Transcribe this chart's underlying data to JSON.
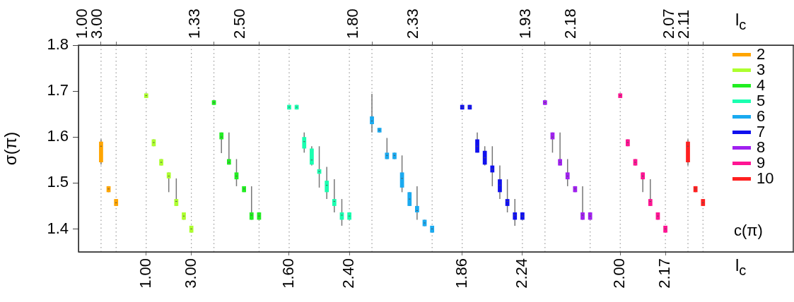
{
  "chart_data": {
    "type": "box",
    "ylabel": "σ(π)",
    "xlabel": "l$_{c}$",
    "x2label": "l$_{c}$",
    "legend_title": "c(π)",
    "legend": "right",
    "grid": "x",
    "ylim": [
      1.35,
      1.8
    ],
    "yticks": [
      1.4,
      1.5,
      1.6,
      1.7,
      1.8
    ],
    "annotations": [
      "1.00",
      "3.00",
      "1.33",
      "2.50",
      "1.80",
      "2.33",
      "1.93",
      "2.18",
      "2.07",
      "2.11"
    ],
    "categories": [
      null,
      null,
      null,
      null,
      null,
      null,
      "1.00",
      null,
      null,
      null,
      null,
      null,
      "3.00",
      null,
      null,
      null,
      null,
      null,
      null,
      null,
      null,
      null,
      null,
      null,
      null,
      "1.60",
      null,
      null,
      null,
      null,
      null,
      null,
      null,
      "2.40",
      null,
      null,
      null,
      null,
      null,
      null,
      null,
      null,
      null,
      null,
      null,
      null,
      null,
      null,
      "1.86",
      null,
      null,
      null,
      null,
      null,
      null,
      null,
      "2.24",
      null,
      null,
      null,
      null,
      null,
      null,
      null,
      null,
      null,
      null,
      null,
      null,
      "2.00",
      null,
      null,
      null,
      null,
      null,
      "2.17",
      null,
      null,
      null,
      null,
      null
    ],
    "series": [
      {
        "name": "2",
        "color": "#ffa500",
        "boxes": [
          {
            "low": 1.54,
            "q1": 1.545,
            "median": 1.58,
            "q3": 1.59,
            "high": 1.595
          },
          {
            "low": 1.48,
            "q1": 1.48,
            "median": 1.487,
            "q3": 1.493,
            "high": 1.493
          },
          {
            "low": 1.45,
            "q1": 1.45,
            "median": 1.457,
            "q3": 1.465,
            "high": 1.465
          },
          null,
          null,
          null,
          null,
          null,
          null,
          null,
          null,
          null,
          null,
          null,
          null,
          null,
          null,
          null,
          null,
          null,
          null,
          null,
          null,
          null,
          null,
          null,
          null,
          null,
          null,
          null,
          null,
          null,
          null,
          null,
          null,
          null,
          null,
          null,
          null,
          null,
          null,
          null,
          null,
          null,
          null,
          null,
          null,
          null,
          null,
          null,
          null,
          null,
          null,
          null,
          null,
          null,
          null,
          null,
          null,
          null,
          null,
          null,
          null,
          null,
          null,
          null,
          null,
          null,
          null,
          null,
          null,
          null,
          null,
          null,
          null,
          null,
          null,
          null,
          null,
          null,
          null
        ]
      },
      {
        "name": "3",
        "color": "#adff2f",
        "boxes": [
          null,
          null,
          null,
          null,
          null,
          null,
          {
            "low": 1.685,
            "q1": 1.685,
            "median": 1.69,
            "q3": 1.695,
            "high": 1.695
          },
          {
            "low": 1.58,
            "q1": 1.58,
            "median": 1.588,
            "q3": 1.595,
            "high": 1.595
          },
          {
            "low": 1.538,
            "q1": 1.538,
            "median": 1.545,
            "q3": 1.552,
            "high": 1.552
          },
          {
            "low": 1.48,
            "q1": 1.51,
            "median": 1.515,
            "q3": 1.523,
            "high": 1.523
          },
          {
            "low": 1.45,
            "q1": 1.45,
            "median": 1.46,
            "q3": 1.465,
            "high": 1.51
          },
          {
            "low": 1.42,
            "q1": 1.42,
            "median": 1.428,
            "q3": 1.436,
            "high": 1.436
          },
          {
            "low": 1.392,
            "q1": 1.392,
            "median": 1.4,
            "q3": 1.407,
            "high": 1.407
          },
          null,
          null,
          null,
          null,
          null,
          null,
          null,
          null,
          null,
          null,
          null,
          null,
          null,
          null,
          null,
          null,
          null,
          null,
          null,
          null,
          null,
          null,
          null,
          null,
          null,
          null,
          null,
          null,
          null,
          null,
          null,
          null,
          null,
          null,
          null,
          null,
          null,
          null,
          null,
          null,
          null,
          null,
          null,
          null,
          null,
          null,
          null,
          null,
          null,
          null,
          null,
          null,
          null,
          null,
          null,
          null,
          null,
          null,
          null,
          null,
          null,
          null,
          null,
          null,
          null,
          null,
          null,
          null
        ]
      },
      {
        "name": "4",
        "color": "#22ee22",
        "boxes": [
          null,
          null,
          null,
          null,
          null,
          null,
          null,
          null,
          null,
          null,
          null,
          null,
          null,
          null,
          null,
          {
            "low": 1.67,
            "q1": 1.67,
            "median": 1.675,
            "q3": 1.68,
            "high": 1.68
          },
          {
            "low": 1.565,
            "q1": 1.595,
            "median": 1.6,
            "q3": 1.61,
            "high": 1.61
          },
          {
            "low": 1.54,
            "q1": 1.54,
            "median": 1.545,
            "q3": 1.552,
            "high": 1.61
          },
          {
            "low": 1.493,
            "q1": 1.508,
            "median": 1.515,
            "q3": 1.523,
            "high": 1.552
          },
          {
            "low": 1.48,
            "q1": 1.48,
            "median": 1.487,
            "q3": 1.493,
            "high": 1.493
          },
          {
            "low": 1.42,
            "q1": 1.42,
            "median": 1.43,
            "q3": 1.436,
            "high": 1.493
          },
          {
            "low": 1.42,
            "q1": 1.42,
            "median": 1.428,
            "q3": 1.436,
            "high": 1.436
          },
          null,
          null,
          null,
          null,
          null,
          null,
          null,
          null,
          null,
          null,
          null,
          null,
          null,
          null,
          null,
          null,
          null,
          null,
          null,
          null,
          null,
          null,
          null,
          null,
          null,
          null,
          null,
          null,
          null,
          null,
          null,
          null,
          null,
          null,
          null,
          null,
          null,
          null,
          null,
          null,
          null,
          null,
          null,
          null,
          null,
          null,
          null,
          null,
          null,
          null,
          null,
          null,
          null,
          null,
          null,
          null,
          null,
          null,
          null
        ]
      },
      {
        "name": "5",
        "color": "#1affb0",
        "boxes": [
          null,
          null,
          null,
          null,
          null,
          null,
          null,
          null,
          null,
          null,
          null,
          null,
          null,
          null,
          null,
          null,
          null,
          null,
          null,
          null,
          null,
          null,
          null,
          null,
          null,
          {
            "low": 1.66,
            "q1": 1.66,
            "median": 1.665,
            "q3": 1.67,
            "high": 1.67
          },
          {
            "low": 1.66,
            "q1": 1.66,
            "median": 1.665,
            "q3": 1.67,
            "high": 1.67
          },
          {
            "low": 1.566,
            "q1": 1.575,
            "median": 1.59,
            "q3": 1.6,
            "high": 1.61
          },
          {
            "low": 1.538,
            "q1": 1.54,
            "median": 1.55,
            "q3": 1.575,
            "high": 1.58
          },
          {
            "low": 1.49,
            "q1": 1.52,
            "median": 1.525,
            "q3": 1.53,
            "high": 1.58
          },
          {
            "low": 1.465,
            "q1": 1.48,
            "median": 1.495,
            "q3": 1.505,
            "high": 1.535
          },
          {
            "low": 1.436,
            "q1": 1.45,
            "median": 1.46,
            "q3": 1.465,
            "high": 1.508
          },
          {
            "low": 1.407,
            "q1": 1.42,
            "median": 1.43,
            "q3": 1.436,
            "high": 1.465
          },
          {
            "low": 1.42,
            "q1": 1.42,
            "median": 1.428,
            "q3": 1.436,
            "high": 1.436
          },
          null,
          null,
          null,
          null,
          null,
          null,
          null,
          null,
          null,
          null,
          null,
          null,
          null,
          null,
          null,
          null,
          null,
          null,
          null,
          null,
          null,
          null,
          null,
          null,
          null,
          null,
          null,
          null,
          null,
          null,
          null,
          null,
          null,
          null,
          null,
          null,
          null,
          null,
          null,
          null,
          null,
          null,
          null,
          null,
          null,
          null,
          null
        ]
      },
      {
        "name": "6",
        "color": "#1aaaf0",
        "boxes": [
          null,
          null,
          null,
          null,
          null,
          null,
          null,
          null,
          null,
          null,
          null,
          null,
          null,
          null,
          null,
          null,
          null,
          null,
          null,
          null,
          null,
          null,
          null,
          null,
          null,
          null,
          null,
          null,
          null,
          null,
          null,
          null,
          null,
          null,
          null,
          null,
          {
            "low": 1.61,
            "q1": 1.628,
            "median": 1.635,
            "q3": 1.645,
            "high": 1.694
          },
          {
            "low": 1.61,
            "q1": 1.61,
            "median": 1.615,
            "q3": 1.62,
            "high": 1.62
          },
          {
            "low": 1.552,
            "q1": 1.552,
            "median": 1.56,
            "q3": 1.566,
            "high": 1.598
          },
          {
            "low": 1.552,
            "q1": 1.552,
            "median": 1.56,
            "q3": 1.566,
            "high": 1.566
          },
          {
            "low": 1.48,
            "q1": 1.49,
            "median": 1.51,
            "q3": 1.523,
            "high": 1.56
          },
          {
            "low": 1.45,
            "q1": 1.45,
            "median": 1.465,
            "q3": 1.48,
            "high": 1.48
          },
          {
            "low": 1.42,
            "q1": 1.436,
            "median": 1.44,
            "q3": 1.45,
            "high": 1.493
          },
          {
            "low": 1.406,
            "q1": 1.406,
            "median": 1.413,
            "q3": 1.42,
            "high": 1.42
          },
          {
            "low": 1.392,
            "q1": 1.392,
            "median": 1.4,
            "q3": 1.407,
            "high": 1.407
          },
          null,
          null,
          null,
          null,
          null,
          null,
          null,
          null,
          null,
          null,
          null,
          null,
          null,
          null,
          null,
          null,
          null,
          null,
          null,
          null,
          null,
          null,
          null,
          null,
          null,
          null,
          null,
          null,
          null,
          null,
          null,
          null,
          null,
          null,
          null,
          null
        ]
      },
      {
        "name": "7",
        "color": "#1010ee",
        "boxes": [
          null,
          null,
          null,
          null,
          null,
          null,
          null,
          null,
          null,
          null,
          null,
          null,
          null,
          null,
          null,
          null,
          null,
          null,
          null,
          null,
          null,
          null,
          null,
          null,
          null,
          null,
          null,
          null,
          null,
          null,
          null,
          null,
          null,
          null,
          null,
          null,
          null,
          null,
          null,
          null,
          null,
          null,
          null,
          null,
          null,
          null,
          null,
          null,
          {
            "low": 1.66,
            "q1": 1.66,
            "median": 1.665,
            "q3": 1.67,
            "high": 1.67
          },
          {
            "low": 1.66,
            "q1": 1.66,
            "median": 1.665,
            "q3": 1.67,
            "high": 1.67
          },
          {
            "low": 1.566,
            "q1": 1.566,
            "median": 1.58,
            "q3": 1.595,
            "high": 1.61
          },
          {
            "low": 1.538,
            "q1": 1.54,
            "median": 1.555,
            "q3": 1.57,
            "high": 1.58
          },
          {
            "low": 1.493,
            "q1": 1.523,
            "median": 1.53,
            "q3": 1.538,
            "high": 1.58
          },
          {
            "low": 1.465,
            "q1": 1.48,
            "median": 1.495,
            "q3": 1.508,
            "high": 1.538
          },
          {
            "low": 1.436,
            "q1": 1.45,
            "median": 1.46,
            "q3": 1.465,
            "high": 1.508
          },
          {
            "low": 1.407,
            "q1": 1.42,
            "median": 1.43,
            "q3": 1.436,
            "high": 1.465
          },
          {
            "low": 1.42,
            "q1": 1.42,
            "median": 1.428,
            "q3": 1.436,
            "high": 1.436
          },
          null,
          null,
          null,
          null,
          null,
          null,
          null,
          null,
          null,
          null,
          null,
          null,
          null,
          null,
          null,
          null,
          null,
          null,
          null,
          null,
          null,
          null,
          null,
          null
        ]
      },
      {
        "name": "8",
        "color": "#a020f0",
        "boxes": [
          null,
          null,
          null,
          null,
          null,
          null,
          null,
          null,
          null,
          null,
          null,
          null,
          null,
          null,
          null,
          null,
          null,
          null,
          null,
          null,
          null,
          null,
          null,
          null,
          null,
          null,
          null,
          null,
          null,
          null,
          null,
          null,
          null,
          null,
          null,
          null,
          null,
          null,
          null,
          null,
          null,
          null,
          null,
          null,
          null,
          null,
          null,
          null,
          null,
          null,
          null,
          null,
          null,
          null,
          null,
          null,
          null,
          null,
          null,
          {
            "low": 1.67,
            "q1": 1.67,
            "median": 1.675,
            "q3": 1.68,
            "high": 1.68
          },
          {
            "low": 1.566,
            "q1": 1.595,
            "median": 1.6,
            "q3": 1.61,
            "high": 1.61
          },
          {
            "low": 1.538,
            "q1": 1.538,
            "median": 1.545,
            "q3": 1.552,
            "high": 1.61
          },
          {
            "low": 1.493,
            "q1": 1.508,
            "median": 1.515,
            "q3": 1.523,
            "high": 1.552
          },
          {
            "low": 1.48,
            "q1": 1.48,
            "median": 1.487,
            "q3": 1.493,
            "high": 1.493
          },
          {
            "low": 1.42,
            "q1": 1.42,
            "median": 1.43,
            "q3": 1.436,
            "high": 1.493
          },
          {
            "low": 1.42,
            "q1": 1.42,
            "median": 1.428,
            "q3": 1.436,
            "high": 1.436
          },
          null,
          null,
          null,
          null,
          null,
          null,
          null,
          null,
          null,
          null,
          null,
          null,
          null,
          null,
          null
        ]
      },
      {
        "name": "9",
        "color": "#ff1493",
        "boxes": [
          null,
          null,
          null,
          null,
          null,
          null,
          null,
          null,
          null,
          null,
          null,
          null,
          null,
          null,
          null,
          null,
          null,
          null,
          null,
          null,
          null,
          null,
          null,
          null,
          null,
          null,
          null,
          null,
          null,
          null,
          null,
          null,
          null,
          null,
          null,
          null,
          null,
          null,
          null,
          null,
          null,
          null,
          null,
          null,
          null,
          null,
          null,
          null,
          null,
          null,
          null,
          null,
          null,
          null,
          null,
          null,
          null,
          null,
          null,
          null,
          null,
          null,
          null,
          null,
          null,
          null,
          null,
          null,
          null,
          {
            "low": 1.685,
            "q1": 1.685,
            "median": 1.69,
            "q3": 1.695,
            "high": 1.695
          },
          {
            "low": 1.58,
            "q1": 1.58,
            "median": 1.588,
            "q3": 1.595,
            "high": 1.595
          },
          {
            "low": 1.538,
            "q1": 1.538,
            "median": 1.545,
            "q3": 1.552,
            "high": 1.552
          },
          {
            "low": 1.48,
            "q1": 1.508,
            "median": 1.515,
            "q3": 1.523,
            "high": 1.523
          },
          {
            "low": 1.45,
            "q1": 1.45,
            "median": 1.46,
            "q3": 1.465,
            "high": 1.508
          },
          {
            "low": 1.42,
            "q1": 1.42,
            "median": 1.428,
            "q3": 1.436,
            "high": 1.436
          },
          {
            "low": 1.392,
            "q1": 1.392,
            "median": 1.4,
            "q3": 1.407,
            "high": 1.407
          },
          null,
          null,
          null,
          null,
          null
        ]
      },
      {
        "name": "10",
        "color": "#ff2020",
        "boxes": [
          null,
          null,
          null,
          null,
          null,
          null,
          null,
          null,
          null,
          null,
          null,
          null,
          null,
          null,
          null,
          null,
          null,
          null,
          null,
          null,
          null,
          null,
          null,
          null,
          null,
          null,
          null,
          null,
          null,
          null,
          null,
          null,
          null,
          null,
          null,
          null,
          null,
          null,
          null,
          null,
          null,
          null,
          null,
          null,
          null,
          null,
          null,
          null,
          null,
          null,
          null,
          null,
          null,
          null,
          null,
          null,
          null,
          null,
          null,
          null,
          null,
          null,
          null,
          null,
          null,
          null,
          null,
          null,
          null,
          null,
          null,
          null,
          null,
          null,
          null,
          null,
          null,
          null,
          {
            "low": 1.538,
            "q1": 1.545,
            "median": 1.58,
            "q3": 1.59,
            "high": 1.595
          },
          {
            "low": 1.48,
            "q1": 1.48,
            "median": 1.487,
            "q3": 1.493,
            "high": 1.493
          },
          {
            "low": 1.45,
            "q1": 1.45,
            "median": 1.457,
            "q3": 1.465,
            "high": 1.465
          }
        ]
      }
    ]
  }
}
